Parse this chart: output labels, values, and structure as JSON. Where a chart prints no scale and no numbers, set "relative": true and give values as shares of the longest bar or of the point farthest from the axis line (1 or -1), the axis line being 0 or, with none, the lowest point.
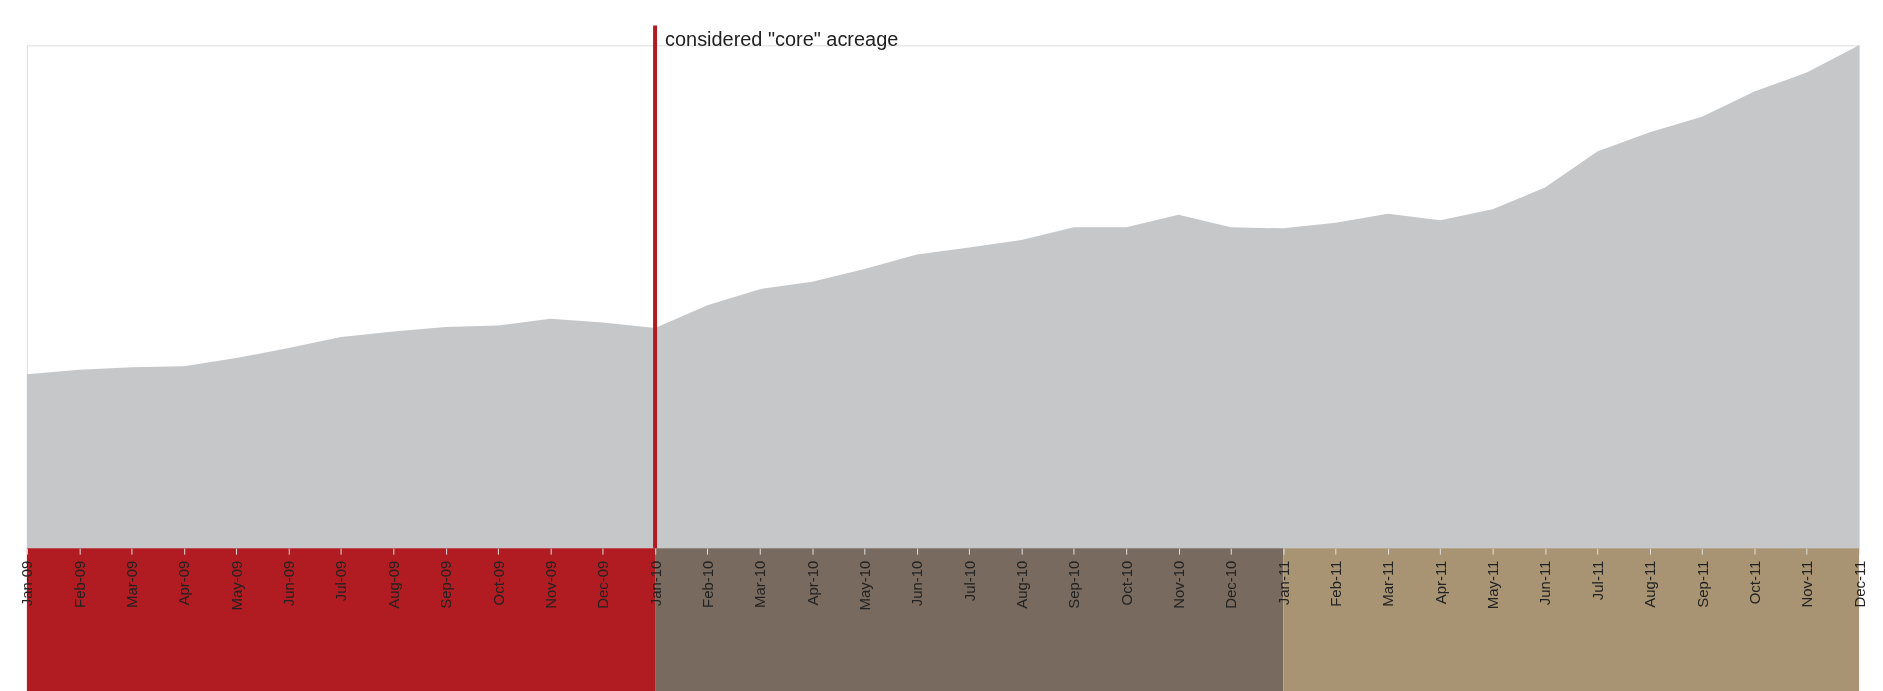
{
  "chart_data": {
    "type": "area",
    "relative": true,
    "categories": [
      "Jan-09",
      "Feb-09",
      "Mar-09",
      "Apr-09",
      "May-09",
      "Jun-09",
      "Jul-09",
      "Aug-09",
      "Sep-09",
      "Oct-09",
      "Nov-09",
      "Dec-09",
      "Jan-10",
      "Feb-10",
      "Mar-10",
      "Apr-10",
      "May-10",
      "Jun-10",
      "Jul-10",
      "Aug-10",
      "Sep-10",
      "Oct-10",
      "Nov-10",
      "Dec-10",
      "Jan-11",
      "Feb-11",
      "Mar-11",
      "Apr-11",
      "May-11",
      "Jun-11",
      "Jul-11",
      "Aug-11",
      "Sep-11",
      "Oct-11",
      "Nov-11",
      "Dec-11"
    ],
    "series": [
      {
        "color": "#c5c7c9",
        "values": [
          0.346,
          0.355,
          0.36,
          0.362,
          0.378,
          0.398,
          0.42,
          0.431,
          0.44,
          0.443,
          0.456,
          0.449,
          0.438,
          0.483,
          0.515,
          0.53,
          0.555,
          0.584,
          0.598,
          0.613,
          0.638,
          0.638,
          0.663,
          0.638,
          0.636,
          0.647,
          0.665,
          0.652,
          0.674,
          0.717,
          0.789,
          0.827,
          0.858,
          0.908,
          0.946,
          1.0
        ]
      }
    ],
    "ref_lines": [
      {
        "axis": "x",
        "value": "Jan-10",
        "label": "considered \"core\" acreage",
        "color": "#b01c22"
      }
    ]
  }
}
